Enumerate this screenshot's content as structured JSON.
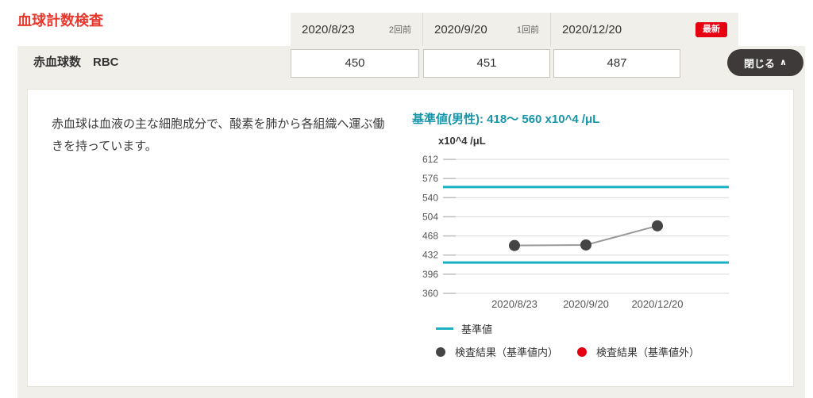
{
  "page": {
    "title": "血球計数検査"
  },
  "header": {
    "columns": [
      {
        "date": "2020/8/23",
        "tag": "2回前"
      },
      {
        "date": "2020/9/20",
        "tag": "1回前"
      },
      {
        "date": "2020/12/20",
        "tag": "最新"
      }
    ]
  },
  "row": {
    "label": "赤血球数　RBC",
    "values": [
      "450",
      "451",
      "487"
    ],
    "close_label": "閉じる",
    "chevron": "∧"
  },
  "detail": {
    "description": "赤血球は血液の主な細胞成分で、酸素を肺から各組織へ運ぶ働きを持っています。",
    "reference_label": "基準値(男性): 418〜 560 x10^4 /μL"
  },
  "chart_data": {
    "type": "line",
    "x": [
      "2020/8/23",
      "2020/9/20",
      "2020/12/20"
    ],
    "values": [
      450,
      451,
      487
    ],
    "title": "",
    "xlabel": "",
    "ylabel": "x10^4 /μL",
    "yticks": [
      612,
      576,
      540,
      504,
      468,
      432,
      396,
      360
    ],
    "ylim": [
      360,
      612
    ],
    "reference_lines": [
      560,
      418
    ],
    "grid": true,
    "legend_position": "bottom",
    "colors": {
      "reference": "#1cb0c4",
      "line": "#999999",
      "grid": "#dadada",
      "tick": "#bdbdbd",
      "point_in_range": "#454545",
      "point_out_range": "#e60012"
    }
  },
  "legend": {
    "reference": "基準値",
    "in_range": "検査結果（基準値内）",
    "out_range": "検査結果（基準値外）"
  },
  "colors": {
    "accent_red": "#e8382d",
    "badge_red": "#e60012",
    "teal_text": "#1796aa",
    "beige": "#f1efe9"
  }
}
